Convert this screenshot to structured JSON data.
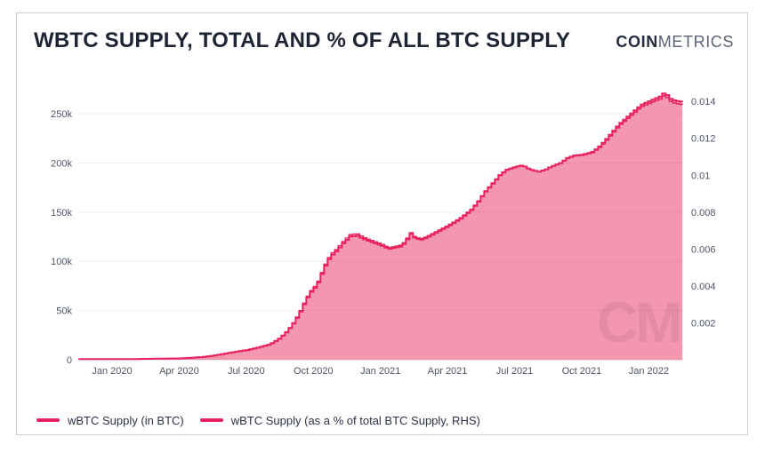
{
  "card": {
    "title": "WBTC SUPPLY, TOTAL AND % OF ALL BTC SUPPLY",
    "brand": {
      "bold": "COIN",
      "light": "METRICS"
    },
    "watermark": "CM"
  },
  "legend": [
    {
      "label": "wBTC Supply (in BTC)"
    },
    {
      "label": "wBTC Supply (as a % of total BTC Supply, RHS)"
    }
  ],
  "colors": {
    "accent_line": "#E8225F",
    "area_fill": "rgba(231,45,95,0.5)",
    "title_text": "#1D2433",
    "axis_text": "#4D5566",
    "gridline": "#EDEEF2",
    "axis_line": "#D8DAE0",
    "watermark": "rgba(40,12,28,0.07)",
    "card_border": "#CDCDCD"
  },
  "chart_data": {
    "type": "area",
    "title": "WBTC SUPPLY, TOTAL AND % OF ALL BTC SUPPLY",
    "grid": "horizontal-only",
    "legend_position": "bottom-left",
    "x_axis": {
      "unit": "t = months since Jan 2020 tick",
      "tick_t": [
        0,
        3,
        6,
        9,
        12,
        15,
        18,
        21,
        24
      ],
      "tick_labels": [
        "Jan 2020",
        "Apr 2020",
        "Jul 2020",
        "Oct 2020",
        "Jan 2021",
        "Apr 2021",
        "Jul 2021",
        "Oct 2021",
        "Jan 2022"
      ],
      "range_t": [
        -1.5,
        25.5
      ]
    },
    "left_axis": {
      "title": "wBTC Supply (in BTC)",
      "ticks": [
        0,
        50000,
        100000,
        150000,
        200000,
        250000
      ],
      "tick_labels": [
        "0",
        "50k",
        "100k",
        "150k",
        "200k",
        "250k"
      ],
      "range": [
        0,
        280000
      ]
    },
    "right_axis": {
      "title": "wBTC Supply (as a % of total BTC Supply)",
      "ticks": [
        0.002,
        0.004,
        0.006,
        0.008,
        0.01,
        0.012,
        0.014
      ],
      "tick_labels": [
        "0.002",
        "0.004",
        "0.006",
        "0.008",
        "0.01",
        "0.012",
        "0.014"
      ],
      "range": [
        0,
        0.01494
      ]
    },
    "t": [
      -1.5,
      0,
      1,
      2,
      3,
      3.5,
      4,
      4.5,
      5,
      5.5,
      6,
      6.5,
      7,
      7.4,
      7.7,
      8,
      8.3,
      8.6,
      8.8,
      9,
      9.2,
      9.4,
      9.6,
      9.8,
      10,
      10.3,
      10.6,
      10.9,
      11.2,
      11.5,
      11.8,
      12,
      12.3,
      12.6,
      12.9,
      13.1,
      13.3,
      13.5,
      13.8,
      14,
      14.5,
      15,
      15.5,
      16,
      16.3,
      16.6,
      17,
      17.3,
      17.6,
      18,
      18.3,
      18.6,
      19,
      19.3,
      19.6,
      20,
      20.3,
      20.6,
      21,
      21.4,
      21.7,
      22,
      22.3,
      22.6,
      23,
      23.3,
      23.6,
      24,
      24.3,
      24.5,
      24.65,
      24.85,
      25,
      25.3,
      25.5
    ],
    "series": [
      {
        "name": "wBTC Supply (in BTC)",
        "axis": "left",
        "style": "filled-area-with-line",
        "values": [
          590,
          600,
          750,
          1100,
          1400,
          2000,
          2800,
          4200,
          6200,
          8200,
          9800,
          12500,
          15500,
          21000,
          27000,
          35000,
          46000,
          60000,
          68000,
          73000,
          80000,
          92000,
          101000,
          107000,
          111000,
          119000,
          125500,
          126000,
          122500,
          120000,
          117500,
          116000,
          112500,
          114000,
          115500,
          121000,
          128000,
          123000,
          122000,
          124000,
          130000,
          136000,
          143000,
          152000,
          160000,
          170000,
          180000,
          188000,
          193000,
          196000,
          197500,
          193500,
          191000,
          193000,
          196500,
          200000,
          205000,
          207500,
          208500,
          211000,
          216000,
          223000,
          231000,
          239000,
          247000,
          253000,
          259000,
          263000,
          266000,
          268000,
          272000,
          266000,
          264000,
          262500,
          262000
        ]
      },
      {
        "name": "wBTC Supply (as a % of total BTC Supply, RHS)",
        "axis": "right",
        "style": "line",
        "values": [
          3.26e-05,
          3.31e-05,
          4.13e-05,
          6.05e-05,
          7.68e-05,
          0.0001096,
          0.0001533,
          0.0002298,
          0.0003389,
          0.0004479,
          0.0005348,
          0.0006816,
          0.0008443,
          0.0011431,
          0.001469,
          0.0019032,
          0.0025,
          0.0032592,
          0.0036924,
          0.0039625,
          0.004341,
          0.0049904,
          0.0054766,
          0.0057999,
          0.0060146,
          0.0064447,
          0.0067931,
          0.0068166,
          0.0066238,
          0.0064852,
          0.0063467,
          0.0062635,
          0.0060713,
          0.006149,
          0.0062267,
          0.0065209,
          0.0068957,
          0.006624,
          0.0065667,
          0.006672,
          0.0069888,
          0.0073049,
          0.0076742,
          0.0081501,
          0.0085746,
          0.0091057,
          0.0096347,
          0.0100576,
          0.0103197,
          0.0104729,
          0.0105475,
          0.0103285,
          0.010188,
          0.0102894,
          0.0104705,
          0.0106496,
          0.0109102,
          0.0110375,
          0.0110831,
          0.0112082,
          0.0114679,
          0.0118334,
          0.0122515,
          0.0126692,
          0.0130843,
          0.0133953,
          0.0137059,
          0.013908,
          0.0140594,
          0.0141602,
          0.0143679,
          0.0140461,
          0.0139369,
          0.0138506,
          0.0138195
        ]
      }
    ]
  }
}
